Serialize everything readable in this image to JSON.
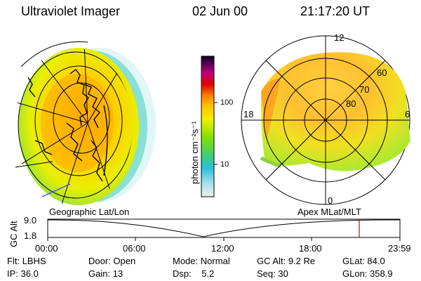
{
  "header": {
    "instrument": "Ultraviolet Imager",
    "date": "02 Jun 00",
    "time": "21:17:20 UT"
  },
  "colorbar": {
    "unit_label": "photon cm⁻²s⁻¹",
    "ticks": [
      "100",
      "10"
    ]
  },
  "left_panel": {
    "caption": "Geographic Lat/Lon"
  },
  "right_panel": {
    "caption": "Apex MLat/MLT",
    "lat_labels": [
      "60",
      "70",
      "80"
    ],
    "mlt_labels": {
      "top": "12",
      "left": "18",
      "right": "6",
      "bottom": "0"
    }
  },
  "altitude_plot": {
    "ylabel": "GC Alt",
    "y_ticks": [
      "9.0",
      "1.8"
    ],
    "x_ticks": [
      "00:00",
      "06:00",
      "12:00",
      "18:00",
      "23:59"
    ],
    "marker_time": "21:17"
  },
  "status": {
    "row1": [
      {
        "label": "Flt:",
        "value": "LBHS"
      },
      {
        "label": "Door:",
        "value": "Open"
      },
      {
        "label": "Mode:",
        "value": "Normal"
      },
      {
        "label": "GC Alt:",
        "value": "9.2 Re"
      },
      {
        "label": "GLat:",
        "value": "84.0"
      }
    ],
    "row2": [
      {
        "label": "IP:",
        "value": "36.0"
      },
      {
        "label": "Gain:",
        "value": "13"
      },
      {
        "label": "Dsp:",
        "value": "5.2"
      },
      {
        "label": "Seq:",
        "value": "30"
      },
      {
        "label": "GLon:",
        "value": "358.9"
      }
    ]
  },
  "colors": {
    "marker": "#d00000",
    "grid": "#000000"
  }
}
